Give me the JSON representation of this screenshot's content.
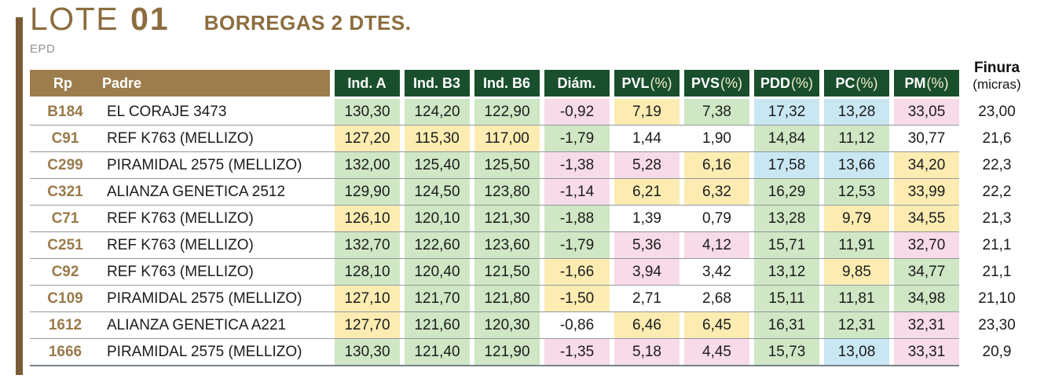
{
  "header": {
    "lote_label": "LOTE",
    "lote_number": "01",
    "subtitle": "BORREGAS 2 DTES.",
    "epd_label": "EPD"
  },
  "table": {
    "rp_header": "Rp",
    "padre_header": "Padre",
    "columns": [
      {
        "bold": "Ind. A",
        "suffix": ""
      },
      {
        "bold": "Ind. B3",
        "suffix": ""
      },
      {
        "bold": "Ind. B6",
        "suffix": ""
      },
      {
        "bold": "Diám.",
        "suffix": ""
      },
      {
        "bold": "PVL",
        "suffix": "(%)"
      },
      {
        "bold": "PVS",
        "suffix": "(%)"
      },
      {
        "bold": "PDD",
        "suffix": "(%)"
      },
      {
        "bold": "PC",
        "suffix": "(%)"
      },
      {
        "bold": "PM",
        "suffix": "(%)"
      }
    ],
    "finura_header": {
      "line1": "Finura",
      "line2": "(micras)"
    },
    "rows": [
      {
        "rp": "B184",
        "padre": "EL CORAJE 3473",
        "values": [
          {
            "v": "130,30",
            "c": "g"
          },
          {
            "v": "124,20",
            "c": "g"
          },
          {
            "v": "122,90",
            "c": "g"
          },
          {
            "v": "-0,92",
            "c": "p"
          },
          {
            "v": "7,19",
            "c": "y"
          },
          {
            "v": "7,38",
            "c": "g"
          },
          {
            "v": "17,32",
            "c": "b"
          },
          {
            "v": "13,28",
            "c": "b"
          },
          {
            "v": "33,05",
            "c": "p"
          }
        ],
        "finura": "23,00"
      },
      {
        "rp": "C91",
        "padre": "REF K763 (MELLIZO)",
        "values": [
          {
            "v": "127,20",
            "c": "y"
          },
          {
            "v": "115,30",
            "c": "y"
          },
          {
            "v": "117,00",
            "c": "y"
          },
          {
            "v": "-1,79",
            "c": "g"
          },
          {
            "v": "1,44",
            "c": "w"
          },
          {
            "v": "1,90",
            "c": "w"
          },
          {
            "v": "14,84",
            "c": "g"
          },
          {
            "v": "11,12",
            "c": "g"
          },
          {
            "v": "30,77",
            "c": "w"
          }
        ],
        "finura": "21,6"
      },
      {
        "rp": "C299",
        "padre": "PIRAMIDAL 2575 (MELLIZO)",
        "values": [
          {
            "v": "132,00",
            "c": "g"
          },
          {
            "v": "125,40",
            "c": "g"
          },
          {
            "v": "125,50",
            "c": "g"
          },
          {
            "v": "-1,38",
            "c": "p"
          },
          {
            "v": "5,28",
            "c": "p"
          },
          {
            "v": "6,16",
            "c": "y"
          },
          {
            "v": "17,58",
            "c": "b"
          },
          {
            "v": "13,66",
            "c": "b"
          },
          {
            "v": "34,20",
            "c": "y"
          }
        ],
        "finura": "22,3"
      },
      {
        "rp": "C321",
        "padre": "ALIANZA GENETICA 2512",
        "values": [
          {
            "v": "129,90",
            "c": "g"
          },
          {
            "v": "124,50",
            "c": "g"
          },
          {
            "v": "123,80",
            "c": "g"
          },
          {
            "v": "-1,14",
            "c": "p"
          },
          {
            "v": "6,21",
            "c": "y"
          },
          {
            "v": "6,32",
            "c": "y"
          },
          {
            "v": "16,29",
            "c": "g"
          },
          {
            "v": "12,53",
            "c": "g"
          },
          {
            "v": "33,99",
            "c": "y"
          }
        ],
        "finura": "22,2"
      },
      {
        "rp": "C71",
        "padre": "REF K763 (MELLIZO)",
        "values": [
          {
            "v": "126,10",
            "c": "y"
          },
          {
            "v": "120,10",
            "c": "g"
          },
          {
            "v": "121,30",
            "c": "g"
          },
          {
            "v": "-1,88",
            "c": "g"
          },
          {
            "v": "1,39",
            "c": "w"
          },
          {
            "v": "0,79",
            "c": "w"
          },
          {
            "v": "13,28",
            "c": "g"
          },
          {
            "v": "9,79",
            "c": "y"
          },
          {
            "v": "34,55",
            "c": "y"
          }
        ],
        "finura": "21,3"
      },
      {
        "rp": "C251",
        "padre": "REF K763 (MELLIZO)",
        "values": [
          {
            "v": "132,70",
            "c": "g"
          },
          {
            "v": "122,60",
            "c": "g"
          },
          {
            "v": "123,60",
            "c": "g"
          },
          {
            "v": "-1,79",
            "c": "g"
          },
          {
            "v": "5,36",
            "c": "p"
          },
          {
            "v": "4,12",
            "c": "p"
          },
          {
            "v": "15,71",
            "c": "g"
          },
          {
            "v": "11,91",
            "c": "g"
          },
          {
            "v": "32,70",
            "c": "p"
          }
        ],
        "finura": "21,1"
      },
      {
        "rp": "C92",
        "padre": "REF K763 (MELLIZO)",
        "values": [
          {
            "v": "128,10",
            "c": "g"
          },
          {
            "v": "120,40",
            "c": "g"
          },
          {
            "v": "121,50",
            "c": "g"
          },
          {
            "v": "-1,66",
            "c": "y"
          },
          {
            "v": "3,94",
            "c": "p"
          },
          {
            "v": "3,42",
            "c": "w"
          },
          {
            "v": "13,12",
            "c": "g"
          },
          {
            "v": "9,85",
            "c": "y"
          },
          {
            "v": "34,77",
            "c": "g"
          }
        ],
        "finura": "21,1"
      },
      {
        "rp": "C109",
        "padre": "PIRAMIDAL 2575 (MELLIZO)",
        "values": [
          {
            "v": "127,10",
            "c": "y"
          },
          {
            "v": "121,70",
            "c": "g"
          },
          {
            "v": "121,80",
            "c": "g"
          },
          {
            "v": "-1,50",
            "c": "y"
          },
          {
            "v": "2,71",
            "c": "w"
          },
          {
            "v": "2,68",
            "c": "w"
          },
          {
            "v": "15,11",
            "c": "g"
          },
          {
            "v": "11,81",
            "c": "g"
          },
          {
            "v": "34,98",
            "c": "g"
          }
        ],
        "finura": "21,10"
      },
      {
        "rp": "1612",
        "padre": "ALIANZA GENETICA A221",
        "values": [
          {
            "v": "127,70",
            "c": "y"
          },
          {
            "v": "121,60",
            "c": "g"
          },
          {
            "v": "120,30",
            "c": "g"
          },
          {
            "v": "-0,86",
            "c": "w"
          },
          {
            "v": "6,46",
            "c": "y"
          },
          {
            "v": "6,45",
            "c": "y"
          },
          {
            "v": "16,31",
            "c": "g"
          },
          {
            "v": "12,31",
            "c": "g"
          },
          {
            "v": "32,31",
            "c": "p"
          }
        ],
        "finura": "23,30"
      },
      {
        "rp": "1666",
        "padre": "PIRAMIDAL 2575 (MELLIZO)",
        "values": [
          {
            "v": "130,30",
            "c": "g"
          },
          {
            "v": "121,40",
            "c": "g"
          },
          {
            "v": "121,90",
            "c": "g"
          },
          {
            "v": "-1,35",
            "c": "p"
          },
          {
            "v": "5,18",
            "c": "p"
          },
          {
            "v": "4,45",
            "c": "p"
          },
          {
            "v": "15,73",
            "c": "g"
          },
          {
            "v": "13,08",
            "c": "b"
          },
          {
            "v": "33,31",
            "c": "p"
          }
        ],
        "finura": "20,9"
      }
    ]
  },
  "colors": {
    "accent_brown": "#8c6d3f",
    "bar_brown": "#7a5a35",
    "header_tan": "#9d7d4e",
    "header_green": "#1a4f2e",
    "header_suffix": "#f3eecb",
    "cell_green": "#cfe7c4",
    "cell_yellow": "#fcecb2",
    "cell_pink": "#f8dbe8",
    "cell_blue": "#c9e7f3",
    "row_line": "#8f999f",
    "rp_text": "#9a7a4a",
    "epd_gray": "#8f8f8f",
    "text_dark": "#1c1c1c"
  }
}
